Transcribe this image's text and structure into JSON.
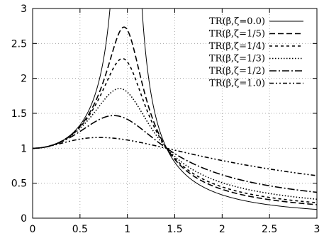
{
  "chart_data": {
    "type": "line",
    "title": "",
    "xlabel": "",
    "ylabel": "",
    "xlim": [
      0,
      3
    ],
    "ylim": [
      0,
      3
    ],
    "xticks": [
      "0",
      "0.5",
      "1",
      "1.5",
      "2",
      "2.5",
      "3"
    ],
    "yticks": [
      "0",
      "0.5",
      "1",
      "1.5",
      "2",
      "2.5",
      "3"
    ],
    "grid": true,
    "legend_position": "top-right",
    "series": [
      {
        "name": "TR(β,ζ=0.0)",
        "zeta": 0.0,
        "dash": "solid",
        "color": "#000000"
      },
      {
        "name": "TR(β,ζ=1/5)",
        "zeta": 0.2,
        "dash": "dashed",
        "color": "#000000"
      },
      {
        "name": "TR(β,ζ=1/4)",
        "zeta": 0.25,
        "dash": "short-dashed",
        "color": "#000000"
      },
      {
        "name": "TR(β,ζ=1/3)",
        "zeta": 0.3333,
        "dash": "dotted",
        "color": "#000000"
      },
      {
        "name": "TR(β,ζ=1/2)",
        "zeta": 0.5,
        "dash": "dash-dot",
        "color": "#000000"
      },
      {
        "name": "TR(β,ζ=1.0)",
        "zeta": 1.0,
        "dash": "dash-dot-dot",
        "color": "#000000"
      }
    ]
  }
}
